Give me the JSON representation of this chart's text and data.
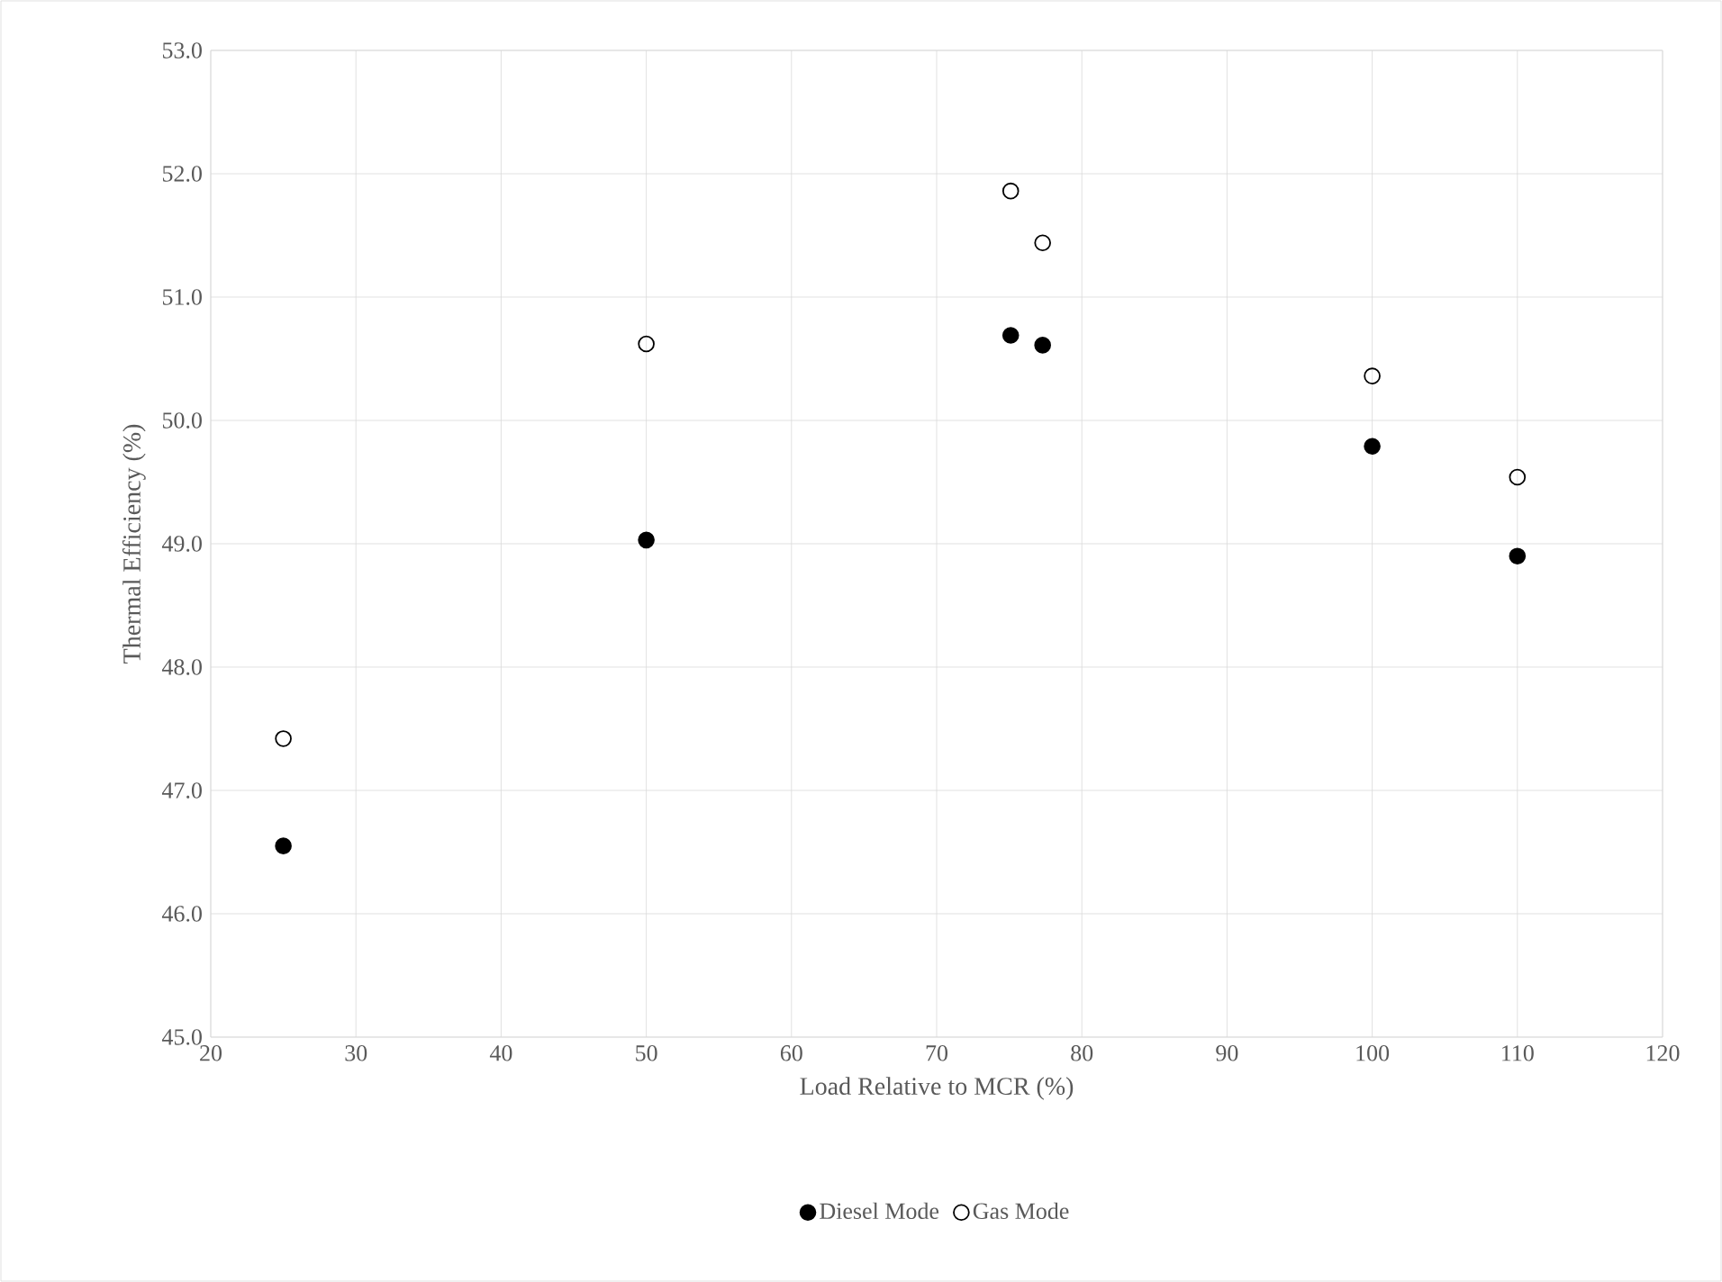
{
  "chart_data": {
    "type": "scatter",
    "xlabel": "Load Relative to MCR (%)",
    "ylabel": "Thermal Efficiency (%)",
    "xlim": [
      20,
      120
    ],
    "xticks": [
      20,
      30,
      40,
      50,
      60,
      70,
      80,
      90,
      100,
      110,
      120
    ],
    "ylim": [
      45.0,
      53.0
    ],
    "yticks": [
      {
        "value": 45,
        "label": "45.0"
      },
      {
        "value": 46,
        "label": "46.0"
      },
      {
        "value": 47,
        "label": "47.0"
      },
      {
        "value": 48,
        "label": "48.0"
      },
      {
        "value": 49,
        "label": "49.0"
      },
      {
        "value": 50,
        "label": "50.0"
      },
      {
        "value": 51,
        "label": "51.0"
      },
      {
        "value": 52,
        "label": "52.0"
      },
      {
        "value": 53,
        "label": "53.0"
      }
    ],
    "grid": true,
    "legend": "bottom",
    "series": [
      {
        "name": "Diesel Mode",
        "color": "#000000",
        "marker": "circle",
        "x": [
          25,
          50,
          75.1,
          77.3,
          100,
          110
        ],
        "values": [
          46.55,
          49.03,
          50.69,
          50.61,
          49.79,
          48.9
        ]
      },
      {
        "name": "Gas Mode",
        "color": "#000000",
        "marker": "circle-open",
        "x": [
          25,
          50,
          75.1,
          77.3,
          100,
          110
        ],
        "values": [
          47.42,
          50.62,
          51.86,
          51.44,
          50.36,
          49.54
        ]
      }
    ]
  }
}
